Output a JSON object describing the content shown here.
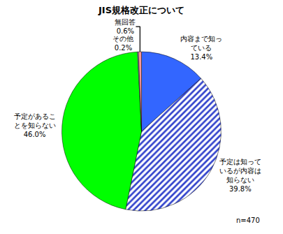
{
  "chart_data": {
    "type": "pie",
    "title": "JIS規格改正について",
    "categories": [
      "内容まで知っている",
      "予定は知っているが内容は知らない",
      "予定があることを知らない",
      "その他",
      "無回答"
    ],
    "values": [
      13.4,
      39.8,
      46.0,
      0.2,
      0.6
    ],
    "value_labels": [
      "13.4%",
      "39.8%",
      "46.0%",
      "0.2%",
      "0.6%"
    ],
    "colors": [
      "#3366ff",
      "#3344cc",
      "#00ff00",
      "#cc99ff",
      "#ff9999"
    ],
    "data_labels": true,
    "annotation": "n=470"
  }
}
